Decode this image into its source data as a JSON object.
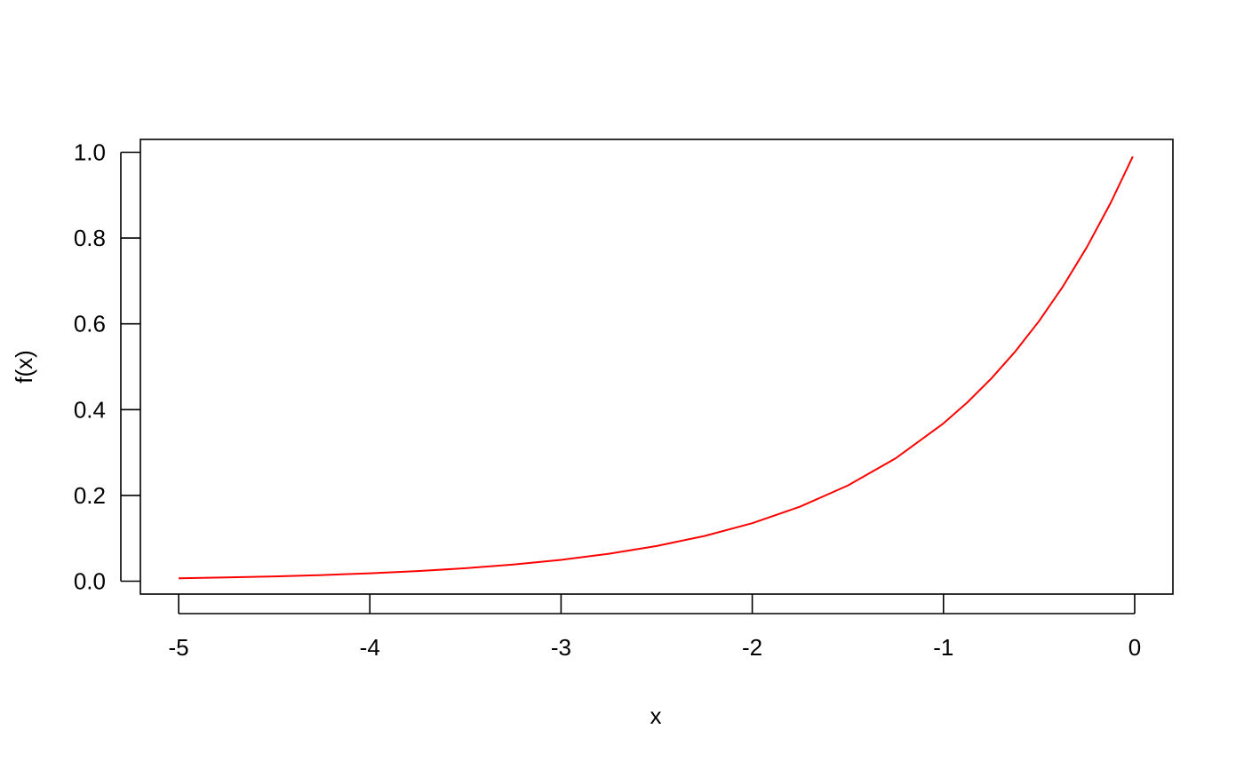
{
  "chart_data": {
    "type": "line",
    "title": "",
    "xlabel": "x",
    "ylabel": "f(x)",
    "xlim": [
      -5.2,
      0.2
    ],
    "ylim": [
      -0.03,
      1.03
    ],
    "x_ticks": [
      -5,
      -4,
      -3,
      -2,
      -1,
      0
    ],
    "x_tick_labels": [
      "-5",
      "-4",
      "-3",
      "-2",
      "-1",
      "0"
    ],
    "y_ticks": [
      0.0,
      0.2,
      0.4,
      0.6,
      0.8,
      1.0
    ],
    "y_tick_labels": [
      "0.0",
      "0.2",
      "0.4",
      "0.6",
      "0.8",
      "1.0"
    ],
    "grid": false,
    "series": [
      {
        "color": "#ff0000",
        "x": [
          -5.0,
          -4.75,
          -4.5,
          -4.25,
          -4.0,
          -3.75,
          -3.5,
          -3.25,
          -3.0,
          -2.75,
          -2.5,
          -2.25,
          -2.0,
          -1.75,
          -1.5,
          -1.25,
          -1.0,
          -0.875,
          -0.75,
          -0.625,
          -0.5,
          -0.375,
          -0.25,
          -0.125,
          -0.01
        ],
        "y": [
          0.0067,
          0.0087,
          0.0111,
          0.0143,
          0.0183,
          0.0235,
          0.0302,
          0.0388,
          0.0498,
          0.0639,
          0.0821,
          0.1054,
          0.1353,
          0.1738,
          0.2231,
          0.2865,
          0.3679,
          0.4169,
          0.4724,
          0.5353,
          0.6065,
          0.6873,
          0.7788,
          0.8825,
          0.99
        ]
      }
    ]
  }
}
